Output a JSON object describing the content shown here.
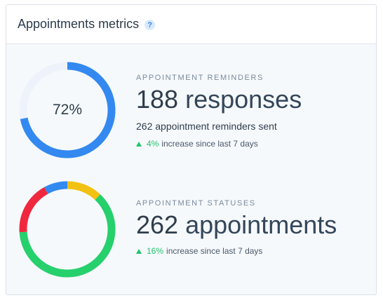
{
  "header": {
    "title": "Appointments metrics",
    "help_icon": "question-mark-icon",
    "help_symbol": "?"
  },
  "reminders": {
    "label": "APPOINTMENT REMINDERS",
    "percent_label": "72%",
    "percent_value": 0.72,
    "count": "188",
    "count_unit": "responses",
    "sent_count": "262",
    "sent_text": "appointment reminders sent",
    "trend_pct": "4%",
    "trend_text": "increase since last 7 days",
    "colors": {
      "fill": "#3389f0",
      "track": "#eef3fb"
    }
  },
  "statuses": {
    "label": "APPOINTMENT STATUSES",
    "count": "262",
    "count_unit": "appointments",
    "trend_pct": "16%",
    "trend_text": "increase since last 7 days",
    "segments": [
      {
        "color": "#f2c111",
        "fraction": 0.12
      },
      {
        "color": "#26d06c",
        "fraction": 0.62
      },
      {
        "color": "#f0283f",
        "fraction": 0.18
      },
      {
        "color": "#3389f0",
        "fraction": 0.08
      }
    ]
  },
  "colors": {
    "trend_up": "#22c46b"
  }
}
